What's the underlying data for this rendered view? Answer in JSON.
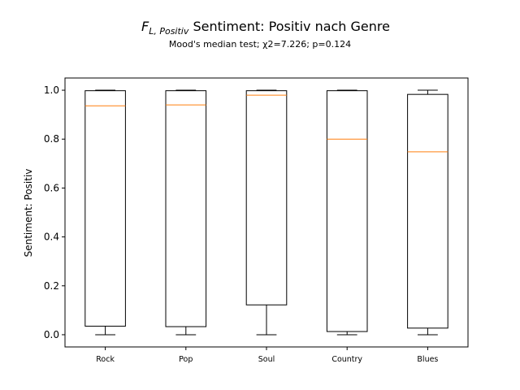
{
  "chart_data": {
    "type": "boxplot",
    "title": {
      "symbol_main": "F",
      "symbol_sub": "L, Positiv",
      "text": " Sentiment: Positiv nach Genre"
    },
    "subtitle": "Mood's median test; χ2=7.226; p=0.124",
    "xlabel": "",
    "ylabel": "Sentiment: Positiv",
    "ylim": [
      -0.05,
      1.05
    ],
    "yticks": [
      "0.0",
      "0.2",
      "0.4",
      "0.6",
      "0.8",
      "1.0"
    ],
    "categories": [
      "Rock",
      "Pop",
      "Soul",
      "Country",
      "Blues"
    ],
    "boxes": [
      {
        "whisker_low": 0.0,
        "q1": 0.035,
        "median": 0.936,
        "q3": 0.998,
        "whisker_high": 1.0
      },
      {
        "whisker_low": 0.0,
        "q1": 0.033,
        "median": 0.94,
        "q3": 0.998,
        "whisker_high": 1.0
      },
      {
        "whisker_low": 0.0,
        "q1": 0.122,
        "median": 0.98,
        "q3": 0.998,
        "whisker_high": 1.0
      },
      {
        "whisker_low": 0.0,
        "q1": 0.013,
        "median": 0.8,
        "q3": 0.998,
        "whisker_high": 1.0
      },
      {
        "whisker_low": 0.0,
        "q1": 0.027,
        "median": 0.748,
        "q3": 0.983,
        "whisker_high": 1.0
      }
    ],
    "grid": false,
    "colors": {
      "box": "#000000",
      "median": "#ff7f0e"
    }
  }
}
